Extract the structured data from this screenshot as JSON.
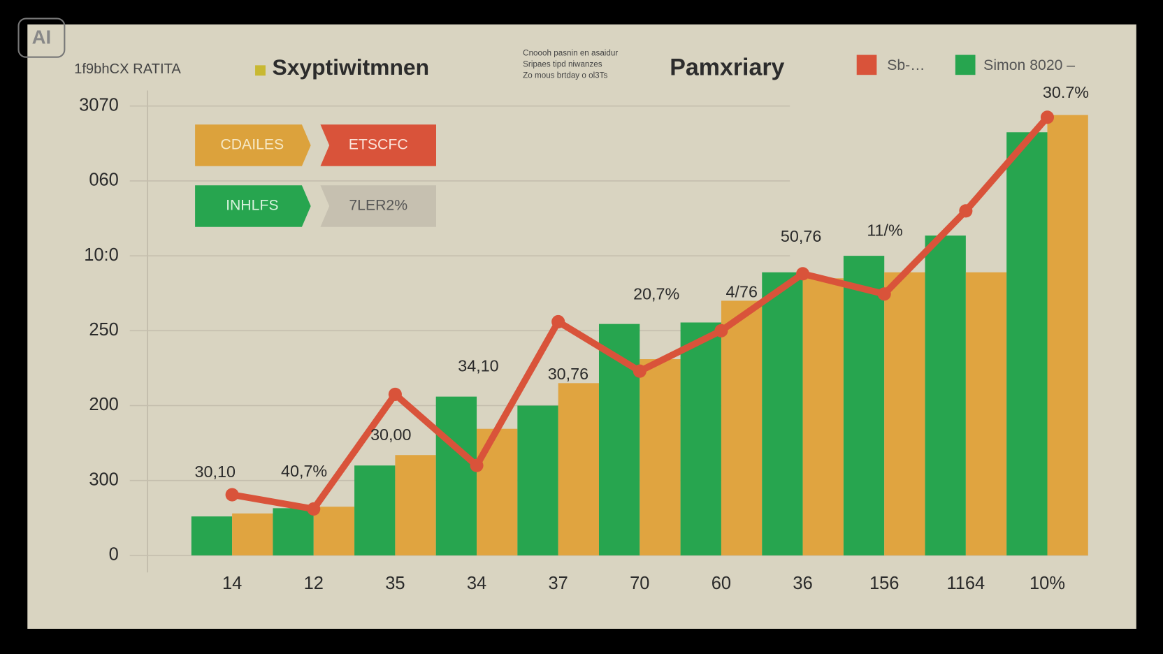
{
  "chart_data": {
    "type": "bar",
    "title": "Pamxriary",
    "subtitle": "1f9bhCX RATITA",
    "note": [
      "Cnoooh pasnin en asaidur",
      "Sripaes tipd niwanzes",
      "Zo mous brtday o ol3Ts"
    ],
    "watermark": "AI",
    "buttons": [
      "CDAILES",
      "ETSCFC",
      "INHLFS",
      "7LER2%"
    ],
    "categories": [
      "14",
      "12",
      "35",
      "34",
      "37",
      "70",
      "60",
      "36",
      "156",
      "1164",
      "10%"
    ],
    "series": [
      {
        "name": "Simon 8020 –",
        "color": "#27a54f",
        "values": [
          0.52,
          0.63,
          1.2,
          2.12,
          2.0,
          3.09,
          3.11,
          3.78,
          4.0,
          4.27,
          5.65
        ]
      },
      {
        "name": "Sxyptiwitmnen",
        "color": "#e0a440",
        "values": [
          0.56,
          0.65,
          1.34,
          1.69,
          2.3,
          2.62,
          3.4,
          3.7,
          3.78,
          3.78,
          5.88
        ]
      },
      {
        "name": "Sb-…",
        "color": "#d9533a",
        "type": "line",
        "values": [
          0.81,
          0.62,
          2.15,
          1.2,
          3.12,
          2.46,
          3.0,
          3.76,
          3.49,
          4.6,
          5.85
        ]
      }
    ],
    "annotations": [
      "30,10",
      "40,7%",
      "30,00",
      "34,10",
      "30,76",
      "20,7%",
      "4/76",
      "50,76",
      "11/%",
      "30.7%"
    ],
    "ylim": [
      0,
      6
    ],
    "yticks": [
      {
        "value": 0,
        "label": "0"
      },
      {
        "value": 1,
        "label": "300"
      },
      {
        "value": 2,
        "label": "200"
      },
      {
        "value": 3,
        "label": "250"
      },
      {
        "value": 4,
        "label": "10:0"
      },
      {
        "value": 5,
        "label": "060"
      },
      {
        "value": 6,
        "label": "3070"
      }
    ],
    "grid": true
  }
}
